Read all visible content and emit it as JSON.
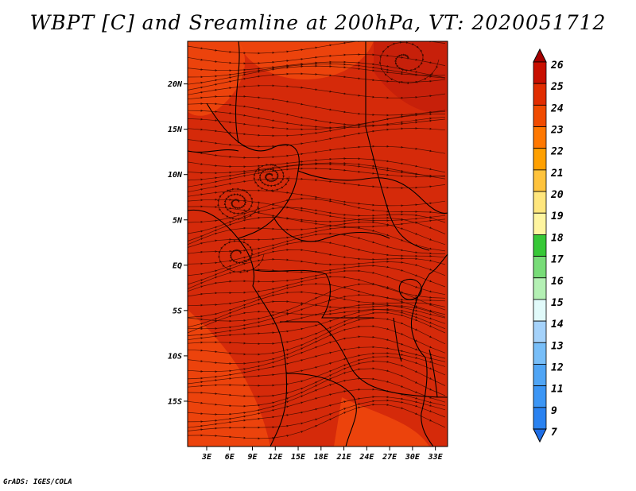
{
  "title": "WBPT [C] and Sreamline at 200hPa, VT: 2020051712",
  "credit": "GrADS: IGES/COLA",
  "map": {
    "lat_ticks": [
      {
        "value": 20,
        "label": "20N"
      },
      {
        "value": 15,
        "label": "15N"
      },
      {
        "value": 10,
        "label": "10N"
      },
      {
        "value": 5,
        "label": "5N"
      },
      {
        "value": 0,
        "label": "EQ"
      },
      {
        "value": -5,
        "label": "5S"
      },
      {
        "value": -10,
        "label": "10S"
      },
      {
        "value": -15,
        "label": "15S"
      }
    ],
    "lon_ticks": [
      {
        "value": 3,
        "label": "3E"
      },
      {
        "value": 6,
        "label": "6E"
      },
      {
        "value": 9,
        "label": "9E"
      },
      {
        "value": 12,
        "label": "12E"
      },
      {
        "value": 15,
        "label": "15E"
      },
      {
        "value": 18,
        "label": "18E"
      },
      {
        "value": 21,
        "label": "21E"
      },
      {
        "value": 24,
        "label": "24E"
      },
      {
        "value": 27,
        "label": "27E"
      },
      {
        "value": 30,
        "label": "30E"
      },
      {
        "value": 33,
        "label": "33E"
      }
    ],
    "lat_range": [
      -20,
      24.7
    ],
    "lon_range": [
      0.5,
      34.6
    ],
    "field_color": "#d52a0a",
    "warm_color": "#f34c0e",
    "cool_color": "#c31e0a"
  },
  "colorbar": {
    "levels": [
      "7",
      "9",
      "11",
      "12",
      "13",
      "14",
      "15",
      "16",
      "17",
      "18",
      "19",
      "20",
      "21",
      "22",
      "23",
      "24",
      "25",
      "26"
    ],
    "colors": [
      "#1e6ee6",
      "#2a82f0",
      "#3c96f5",
      "#50a5f5",
      "#78bef8",
      "#a5d2fa",
      "#e1fafa",
      "#b4f0b4",
      "#78dc78",
      "#37c837",
      "#fff5a0",
      "#ffe67d",
      "#ffc33c",
      "#ffa000",
      "#ff7800",
      "#f04b00",
      "#e12d00",
      "#c80f00",
      "#a50000"
    ]
  }
}
